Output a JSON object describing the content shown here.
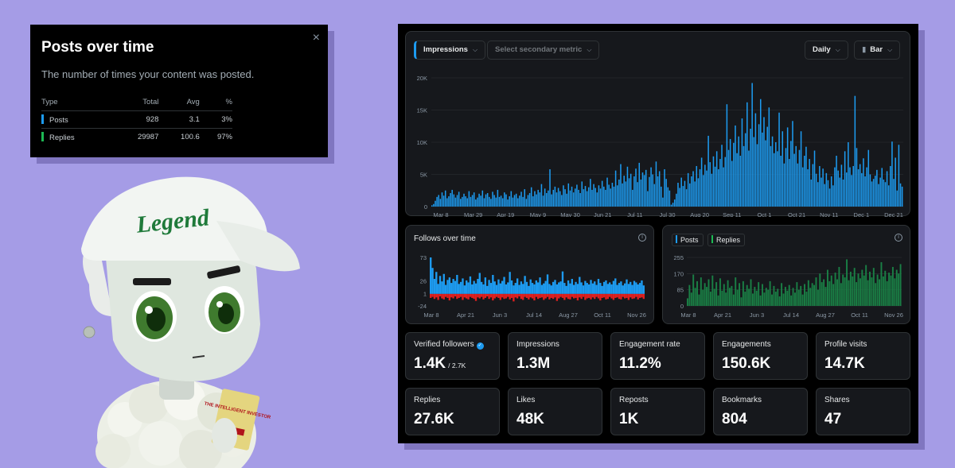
{
  "popup": {
    "title": "Posts over time",
    "description": "The number of times your content was posted.",
    "close_icon": "×",
    "headers": [
      "Type",
      "Total",
      "Avg",
      "%"
    ],
    "rows": [
      {
        "type": "Posts",
        "total": "928",
        "avg": "3.1",
        "pct": "3%",
        "color": "#1d9bf0"
      },
      {
        "type": "Replies",
        "total": "29987",
        "avg": "100.6",
        "pct": "97%",
        "color": "#1db954"
      }
    ]
  },
  "avatar": {
    "cap_text": "Legend",
    "book_text": "THE INTELLIGENT INVESTOR"
  },
  "toolbar": {
    "primary_metric": "Impressions",
    "secondary_metric": "Select secondary metric",
    "interval": "Daily",
    "chart_type": "Bar",
    "chevron": "⌵"
  },
  "chart_data": [
    {
      "type": "bar",
      "title": "Impressions",
      "ylim": [
        0,
        20000
      ],
      "y_ticks": [
        "0",
        "5K",
        "10K",
        "15K",
        "20K"
      ],
      "x_ticks": [
        "Mar 8",
        "Mar 29",
        "Apr 19",
        "May 9",
        "May 30",
        "Jun 21",
        "Jul 11",
        "Jul 30",
        "Aug 20",
        "Sep 11",
        "Oct 1",
        "Oct 21",
        "Nov 11",
        "Dec 1",
        "Dec 21"
      ],
      "color": "#1d9bf0",
      "series": [
        {
          "name": "Impressions",
          "values": [
            200,
            400,
            900,
            1500,
            1800,
            1200,
            2200,
            1700,
            2500,
            1300,
            1600,
            2100,
            2600,
            1900,
            1400,
            1800,
            2300,
            1200,
            1500,
            2000,
            1600,
            1300,
            2400,
            1500,
            1800,
            2200,
            1100,
            1400,
            2000,
            1700,
            2500,
            1300,
            1900,
            2100,
            1500,
            1200,
            2300,
            1800,
            1400,
            2600,
            1500,
            1700,
            1300,
            2200,
            1900,
            1100,
            1600,
            2400,
            1400,
            1800,
            2000,
            1300,
            1700,
            2300,
            1500,
            2700,
            1200,
            1800,
            2100,
            3000,
            1600,
            2400,
            1900,
            2600,
            2200,
            3500,
            1700,
            2800,
            2100,
            2500,
            5800,
            1900,
            2600,
            3100,
            2200,
            2900,
            2400,
            1800,
            3300,
            2700,
            2000,
            3600,
            2500,
            3100,
            2200,
            2800,
            3400,
            2600,
            2100,
            3900,
            2700,
            3200,
            2400,
            3000,
            4300,
            2600,
            3500,
            2900,
            2200,
            3300,
            2800,
            4000,
            3100,
            2600,
            4500,
            3400,
            2800,
            3700,
            3100,
            5600,
            3300,
            4200,
            6600,
            3600,
            4800,
            3900,
            6200,
            4400,
            5100,
            2600,
            4700,
            5900,
            3800,
            6800,
            4200,
            5300,
            4900,
            5700,
            2400,
            4600,
            6100,
            5000,
            3500,
            7000,
            4700,
            5500,
            3100,
            1400,
            5800,
            4300,
            3000,
            2500,
            300,
            600,
            1100,
            2000,
            3700,
            2900,
            4500,
            3200,
            4000,
            2700,
            5200,
            3600,
            4700,
            5500,
            3900,
            6300,
            4400,
            5800,
            7600,
            4900,
            6500,
            5600,
            11000,
            6900,
            5100,
            7800,
            6200,
            8600,
            5800,
            7400,
            9600,
            6100,
            7700,
            15900,
            8800,
            10500,
            7100,
            9900,
            12600,
            8300,
            10900,
            7900,
            13700,
            9400,
            11400,
            16200,
            8700,
            12100,
            19200,
            10800,
            14500,
            9700,
            12800,
            16700,
            11500,
            13900,
            10300,
            12400,
            15400,
            9400,
            10900,
            8300,
            10000,
            8600,
            14600,
            7900,
            11700,
            6700,
            9100,
            12300,
            7400,
            10200,
            13300,
            8200,
            9400,
            6700,
            8800,
            11700,
            6100,
            7900,
            9300,
            5800,
            7400,
            4200,
            6600,
            8700,
            5100,
            3800,
            6300,
            4500,
            5900,
            3500,
            5200,
            4100,
            2800,
            4700,
            3300,
            6100,
            7900,
            5600,
            4500,
            6500,
            4200,
            8600,
            5300,
            10000,
            6100,
            4900,
            6300,
            17200,
            9100,
            5800,
            6600,
            5200,
            7500,
            4700,
            6100,
            8800,
            5000,
            3900,
            4300,
            4800,
            5700,
            3500,
            4500,
            6000,
            4200,
            3800,
            5500,
            3300,
            6300,
            10100,
            4300,
            7600,
            2500,
            9600,
            3600,
            3100
          ]
        }
      ]
    },
    {
      "type": "bar",
      "title": "Follows over time",
      "ylim": [
        -24,
        73
      ],
      "y_ticks": [
        "73",
        "26",
        "1",
        "-24"
      ],
      "x_ticks": [
        "Mar 8",
        "Apr 21",
        "Jun 3",
        "Jul 14",
        "Aug 27",
        "Oct 11",
        "Nov 26"
      ],
      "series": [
        {
          "name": "Follows",
          "color": "#1d9bf0",
          "values": [
            73,
            52,
            30,
            44,
            20,
            36,
            25,
            40,
            18,
            28,
            33,
            22,
            30,
            26,
            38,
            20,
            24,
            31,
            17,
            27,
            23,
            35,
            19,
            26,
            21,
            30,
            42,
            24,
            19,
            33,
            16,
            28,
            22,
            38,
            25,
            18,
            29,
            21,
            26,
            34,
            19,
            23,
            44,
            27,
            17,
            22,
            31,
            18,
            25,
            20,
            36,
            24,
            16,
            29,
            22,
            19,
            27,
            23,
            33,
            18,
            21,
            26,
            39,
            20,
            17,
            24,
            28,
            19,
            23,
            25,
            45,
            22,
            16,
            27,
            21,
            30,
            18,
            24,
            20,
            34,
            23,
            17,
            26,
            22,
            19,
            28,
            21,
            25,
            18,
            30,
            22,
            16,
            24,
            27,
            20,
            23,
            19,
            26,
            31,
            18,
            22,
            25,
            17,
            21,
            29,
            20,
            24,
            18,
            26,
            23,
            19,
            22,
            27,
            17
          ]
        },
        {
          "name": "Unfollows",
          "color": "#e0201f",
          "values": [
            -8,
            -6,
            -10,
            -7,
            -12,
            -5,
            -9,
            -11,
            -6,
            -8,
            -13,
            -7,
            -9,
            -5,
            -10,
            -8,
            -6,
            -12,
            -7,
            -9,
            -11,
            -6,
            -8,
            -10,
            -14,
            -7,
            -9,
            -6,
            -11,
            -8,
            -5,
            -10,
            -7,
            -13,
            -9,
            -6,
            -8,
            -12,
            -7,
            -10,
            -9,
            -6,
            -11,
            -8,
            -15,
            -7,
            -9,
            -5,
            -10,
            -12,
            -6,
            -8,
            -11,
            -7,
            -9,
            -13,
            -6,
            -10,
            -8,
            -7,
            -12,
            -9,
            -6,
            -11,
            -8,
            -10,
            -7,
            -14,
            -9,
            -6,
            -8,
            -12,
            -7,
            -10,
            -11,
            -6,
            -9,
            -8,
            -13,
            -7,
            -10,
            -6,
            -12,
            -9,
            -8,
            -11,
            -7,
            -10,
            -6,
            -9,
            -13,
            -8,
            -7,
            -11,
            -10,
            -6,
            -9,
            -12,
            -8,
            -7,
            -10,
            -11,
            -6,
            -9,
            -8,
            -12,
            -7,
            -10,
            -9,
            -6,
            -11,
            -8,
            -7,
            -10
          ]
        }
      ]
    },
    {
      "type": "bar",
      "title": "Posts and Replies",
      "ylim": [
        0,
        255
      ],
      "y_ticks": [
        "255",
        "170",
        "85",
        "0"
      ],
      "x_ticks": [
        "Mar 8",
        "Apr 21",
        "Jun 3",
        "Jul 14",
        "Aug 27",
        "Oct 11",
        "Nov 26"
      ],
      "series": [
        {
          "name": "Posts",
          "color": "#1d9bf0",
          "values": []
        },
        {
          "name": "Replies",
          "color": "#1a7f45",
          "values": [
            40,
            110,
            70,
            165,
            95,
            130,
            60,
            150,
            85,
            120,
            100,
            140,
            75,
            160,
            90,
            125,
            55,
            145,
            80,
            115,
            70,
            135,
            95,
            105,
            60,
            150,
            85,
            120,
            45,
            130,
            75,
            110,
            90,
            140,
            65,
            100,
            80,
            125,
            55,
            115,
            70,
            95,
            85,
            130,
            60,
            105,
            75,
            90,
            50,
            120,
            65,
            100,
            80,
            110,
            55,
            95,
            70,
            125,
            85,
            105,
            60,
            115,
            75,
            135,
            95,
            120,
            110,
            150,
            85,
            170,
            125,
            140,
            100,
            190,
            130,
            160,
            115,
            175,
            140,
            205,
            120,
            165,
            150,
            245,
            135,
            180,
            155,
            200,
            125,
            170,
            145,
            190,
            160,
            215,
            135,
            180,
            150,
            200,
            120,
            165,
            140,
            230,
            155,
            185,
            130,
            175,
            160,
            205,
            145,
            190,
            170,
            220
          ]
        }
      ]
    }
  ],
  "follows_panel": {
    "title": "Follows over time",
    "info_icon": "i"
  },
  "posts_panel": {
    "legend": [
      "Posts",
      "Replies"
    ],
    "info_icon": "i"
  },
  "stats": [
    {
      "label": "Verified followers",
      "value": "1.4K",
      "sub": "/ 2.7K",
      "verified": "✓"
    },
    {
      "label": "Impressions",
      "value": "1.3M"
    },
    {
      "label": "Engagement rate",
      "value": "11.2%"
    },
    {
      "label": "Engagements",
      "value": "150.6K"
    },
    {
      "label": "Profile visits",
      "value": "14.7K"
    },
    {
      "label": "Replies",
      "value": "27.6K"
    },
    {
      "label": "Likes",
      "value": "48K"
    },
    {
      "label": "Reposts",
      "value": "1K"
    },
    {
      "label": "Bookmarks",
      "value": "804"
    },
    {
      "label": "Shares",
      "value": "47"
    }
  ]
}
